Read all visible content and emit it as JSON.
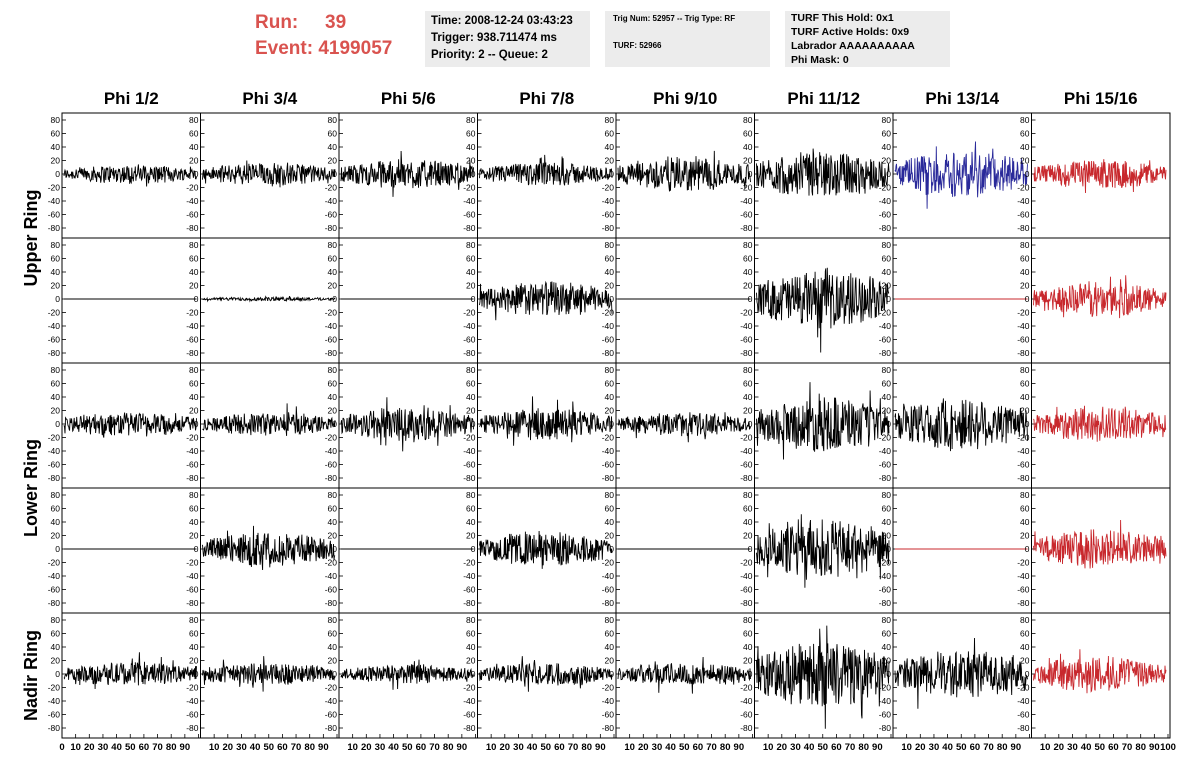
{
  "header": {
    "run_label": "Run:",
    "run_value": "39",
    "event_label": "Event:",
    "event_value": "4199057"
  },
  "info_box_1": {
    "time": "Time: 2008-12-24 03:43:23",
    "trigger": "Trigger: 938.711474 ms",
    "priority": "Priority: 2 -- Queue: 2"
  },
  "info_box_2": {
    "trig": "Trig Num: 52957 -- Trig Type: RF",
    "turf": "TURF: 52966"
  },
  "info_box_3": {
    "this_hold": "TURF This Hold: 0x1",
    "active_holds": "TURF Active Holds: 0x9",
    "labrador": "Labrador AAAAAAAAAA",
    "phi_mask": "Phi Mask: 0"
  },
  "columns": [
    "Phi 1/2",
    "Phi 3/4",
    "Phi 5/6",
    "Phi 7/8",
    "Phi 9/10",
    "Phi 11/12",
    "Phi 13/14",
    "Phi 15/16"
  ],
  "ring_labels": [
    "Upper Ring",
    "Lower Ring",
    "Nadir Ring"
  ],
  "y_ticks": [
    "80",
    "60",
    "40",
    "20",
    "0",
    "-20",
    "-40",
    "-60",
    "-80"
  ],
  "x_ticks": [
    "0",
    "10",
    "20",
    "30",
    "40",
    "50",
    "60",
    "70",
    "80",
    "90",
    "100"
  ],
  "colors": {
    "normal": "#000000",
    "blue": "#2a2a9a",
    "red": "#c8282d"
  },
  "trace_amplitudes": [
    [
      10,
      12,
      15,
      12,
      18,
      25,
      25,
      15
    ],
    [
      0,
      2,
      0,
      18,
      0,
      30,
      0,
      18
    ],
    [
      13,
      12,
      18,
      16,
      12,
      28,
      28,
      18
    ],
    [
      0,
      18,
      0,
      18,
      0,
      32,
      0,
      20
    ],
    [
      12,
      12,
      10,
      12,
      12,
      35,
      25,
      18
    ]
  ],
  "trace_colors": [
    [
      "normal",
      "normal",
      "normal",
      "normal",
      "normal",
      "normal",
      "blue",
      "red"
    ],
    [
      "normal",
      "normal",
      "normal",
      "normal",
      "normal",
      "normal",
      "red",
      "red"
    ],
    [
      "normal",
      "normal",
      "normal",
      "normal",
      "normal",
      "normal",
      "normal",
      "red"
    ],
    [
      "normal",
      "normal",
      "normal",
      "normal",
      "normal",
      "normal",
      "red",
      "red"
    ],
    [
      "normal",
      "normal",
      "normal",
      "normal",
      "normal",
      "normal",
      "normal",
      "red"
    ]
  ]
}
